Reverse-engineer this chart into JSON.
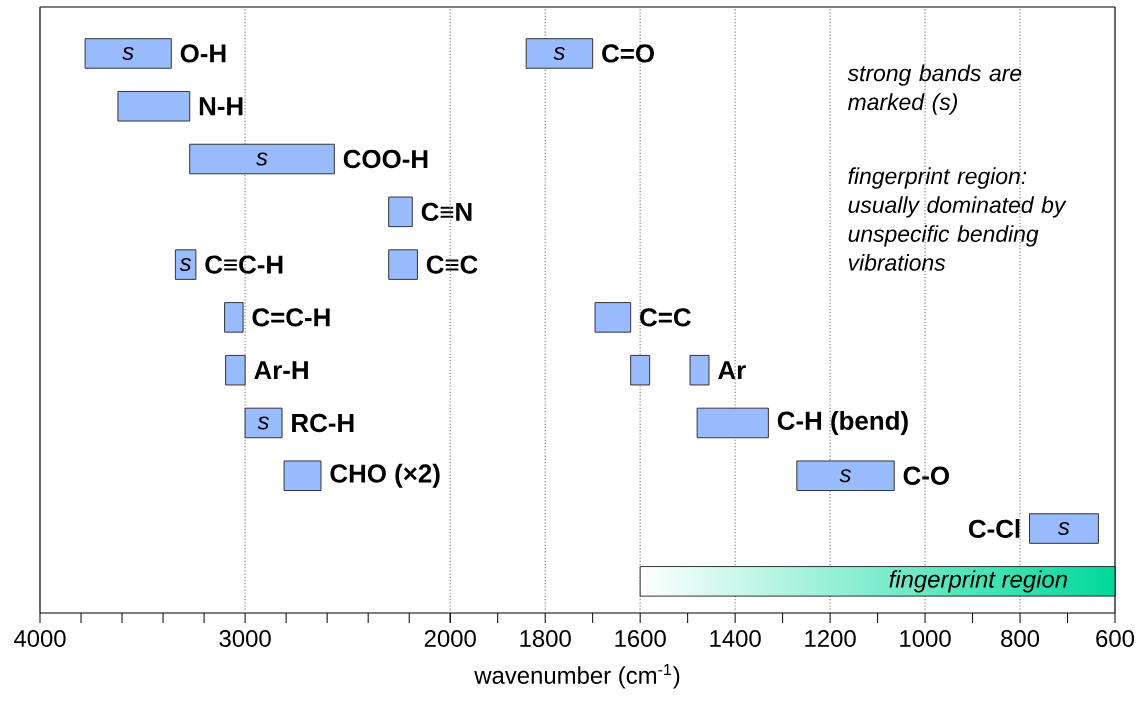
{
  "chart_data": [
    {
      "type": "bar",
      "orientation": "horizontal",
      "categories": [
        null,
        null,
        null,
        null,
        null,
        null,
        null,
        null,
        null,
        null,
        null
      ],
      "xlim": [
        4000,
        2000
      ],
      "xticks": [
        4000,
        {
          "value": 3800,
          "label": null
        },
        {
          "value": 3600,
          "label": null
        },
        {
          "value": 3400,
          "label": null
        },
        {
          "value": 3200,
          "label": null
        },
        3000,
        {
          "value": 2800,
          "label": null
        },
        {
          "value": 2600,
          "label": null
        },
        {
          "value": 2400,
          "label": null
        },
        {
          "value": 2200,
          "label": null
        },
        {
          "value": 2000,
          "label": null
        }
      ],
      "grid": "x",
      "tick_labels": "x",
      "series": [
        {
          "name": "O-H",
          "color": "#99bbff",
          "base": [
            3360,
            null,
            null,
            null,
            null,
            null,
            null,
            null,
            null,
            null,
            null
          ],
          "values": [
            420,
            null,
            null,
            null,
            null,
            null,
            null,
            null,
            null,
            null,
            null
          ],
          "value_labels": [
            "s",
            null,
            null,
            null,
            null,
            null,
            null,
            null,
            null,
            null,
            null
          ]
        },
        {
          "name": "N-H",
          "color": "#99bbff",
          "base": [
            null,
            3270,
            null,
            null,
            null,
            null,
            null,
            null,
            null,
            null,
            null
          ],
          "values": [
            null,
            350,
            null,
            null,
            null,
            null,
            null,
            null,
            null,
            null,
            null
          ]
        },
        {
          "name": "COO-H",
          "color": "#99bbff",
          "base": [
            null,
            null,
            2565,
            null,
            null,
            null,
            null,
            null,
            null,
            null,
            null
          ],
          "values": [
            null,
            null,
            705,
            null,
            null,
            null,
            null,
            null,
            null,
            null,
            null
          ],
          "value_labels": [
            null,
            null,
            "s",
            null,
            null,
            null,
            null,
            null,
            null,
            null,
            null
          ]
        },
        {
          "name": "C≡N",
          "color": "#99bbff",
          "base": [
            null,
            null,
            null,
            2185,
            null,
            null,
            null,
            null,
            null,
            null,
            null
          ],
          "values": [
            null,
            null,
            null,
            115,
            null,
            null,
            null,
            null,
            null,
            null,
            null
          ]
        },
        {
          "name": "C≡C-H",
          "color": "#99bbff",
          "base": [
            null,
            null,
            null,
            null,
            3240,
            null,
            null,
            null,
            null,
            null,
            null
          ],
          "values": [
            null,
            null,
            null,
            null,
            100,
            null,
            null,
            null,
            null,
            null,
            null
          ],
          "value_labels": [
            null,
            null,
            null,
            null,
            "s",
            null,
            null,
            null,
            null,
            null,
            null
          ]
        },
        {
          "name": "C≡C",
          "color": "#99bbff",
          "base": [
            null,
            null,
            null,
            null,
            2160,
            null,
            null,
            null,
            null,
            null,
            null
          ],
          "values": [
            null,
            null,
            null,
            null,
            140,
            null,
            null,
            null,
            null,
            null,
            null
          ]
        },
        {
          "name": "C=C-H",
          "color": "#99bbff",
          "base": [
            null,
            null,
            null,
            null,
            null,
            3010,
            null,
            null,
            null,
            null,
            null
          ],
          "values": [
            null,
            null,
            null,
            null,
            null,
            90,
            null,
            null,
            null,
            null,
            null
          ]
        },
        {
          "name": "Ar-H",
          "color": "#99bbff",
          "base": [
            null,
            null,
            null,
            null,
            null,
            null,
            3000,
            null,
            null,
            null,
            null
          ],
          "values": [
            null,
            null,
            null,
            null,
            null,
            null,
            95,
            null,
            null,
            null,
            null
          ]
        },
        {
          "name": "RC-H",
          "color": "#99bbff",
          "base": [
            null,
            null,
            null,
            null,
            null,
            null,
            null,
            2820,
            null,
            null,
            null
          ],
          "values": [
            null,
            null,
            null,
            null,
            null,
            null,
            null,
            180,
            null,
            null,
            null
          ],
          "value_labels": [
            null,
            null,
            null,
            null,
            null,
            null,
            null,
            "s",
            null,
            null,
            null
          ]
        },
        {
          "name": "CHO (×2)",
          "color": "#99bbff",
          "base": [
            null,
            null,
            null,
            null,
            null,
            null,
            null,
            null,
            2630,
            null,
            null
          ],
          "values": [
            null,
            null,
            null,
            null,
            null,
            null,
            null,
            null,
            180,
            null,
            null
          ]
        }
      ]
    },
    {
      "type": "bar",
      "orientation": "horizontal",
      "categories": [
        null,
        null,
        null,
        null,
        null,
        null,
        null,
        null,
        null,
        null,
        null
      ],
      "xlabel": "wavenumber (cm$^{-1}$)",
      "xlim": [
        2000,
        600
      ],
      "xticks": [
        2000,
        {
          "value": 1900,
          "label": null
        },
        1800,
        {
          "value": 1700,
          "label": null
        },
        1600,
        {
          "value": 1500,
          "label": null
        },
        1400,
        {
          "value": 1300,
          "label": null
        },
        1200,
        {
          "value": 1100,
          "label": null
        },
        1000,
        {
          "value": 900,
          "label": null
        },
        800,
        {
          "value": 700,
          "label": null
        },
        600
      ],
      "grid": "x",
      "tick_labels": "x",
      "series": [
        {
          "name": "C=O",
          "color": "#99bbff",
          "base": [
            1700,
            null,
            null,
            null,
            null,
            null,
            null,
            null,
            null,
            null,
            null
          ],
          "values": [
            140,
            null,
            null,
            null,
            null,
            null,
            null,
            null,
            null,
            null,
            null
          ],
          "value_labels": [
            "s",
            null,
            null,
            null,
            null,
            null,
            null,
            null,
            null,
            null,
            null
          ]
        },
        {
          "name": "C=C",
          "color": "#99bbff",
          "base": [
            null,
            null,
            null,
            null,
            null,
            1620,
            null,
            null,
            null,
            null,
            null
          ],
          "values": [
            null,
            null,
            null,
            null,
            null,
            75,
            null,
            null,
            null,
            null,
            null
          ]
        },
        {
          "color": "#99bbff",
          "base": [
            null,
            null,
            null,
            null,
            null,
            null,
            1580,
            null,
            null,
            null,
            null
          ],
          "values": [
            null,
            null,
            null,
            null,
            null,
            null,
            40,
            null,
            null,
            null,
            null
          ]
        },
        {
          "name": "Ar",
          "color": "#99bbff",
          "base": [
            null,
            null,
            null,
            null,
            null,
            null,
            1455,
            null,
            null,
            null,
            null
          ],
          "values": [
            null,
            null,
            null,
            null,
            null,
            null,
            40,
            null,
            null,
            null,
            null
          ]
        },
        {
          "name": "C-H (bend)",
          "color": "#99bbff",
          "base": [
            null,
            null,
            null,
            null,
            null,
            null,
            null,
            1330,
            null,
            null,
            null
          ],
          "values": [
            null,
            null,
            null,
            null,
            null,
            null,
            null,
            150,
            null,
            null,
            null
          ]
        },
        {
          "name": "C-O",
          "color": "#99bbff",
          "base": [
            null,
            null,
            null,
            null,
            null,
            null,
            null,
            null,
            1065,
            null,
            null
          ],
          "values": [
            null,
            null,
            null,
            null,
            null,
            null,
            null,
            null,
            205,
            null,
            null
          ],
          "value_labels": [
            null,
            null,
            null,
            null,
            null,
            null,
            null,
            null,
            "s",
            null,
            null
          ]
        },
        {
          "name": "C-Cl",
          "color": "#99bbff",
          "base": [
            null,
            null,
            null,
            null,
            null,
            null,
            null,
            null,
            null,
            635,
            null
          ],
          "values": [
            null,
            null,
            null,
            null,
            null,
            null,
            null,
            null,
            null,
            145,
            null
          ],
          "value_labels": [
            null,
            null,
            null,
            null,
            null,
            null,
            null,
            null,
            null,
            "s",
            null
          ]
        }
      ],
      "bands": [
        {
          "axis": "x",
          "from": 1600,
          "to": 600,
          "label": "fingerprint region",
          "color": "#00d89a"
        }
      ],
      "annotations": [
        "strong bands are marked (s)",
        "fingerprint region: usually dominated by unspecific bending vibrations"
      ]
    }
  ]
}
